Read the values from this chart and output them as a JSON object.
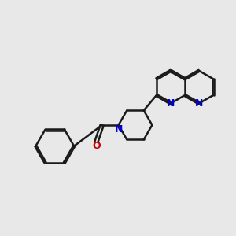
{
  "bg_color": "#e8e8e8",
  "bond_color": "#1a1a1a",
  "nitrogen_color": "#0000cc",
  "oxygen_color": "#cc0000",
  "bond_width": 1.8,
  "dbo": 0.035,
  "fig_width": 3.0,
  "fig_height": 3.0,
  "xlim": [
    0.0,
    10.0
  ],
  "ylim": [
    1.5,
    8.5
  ]
}
